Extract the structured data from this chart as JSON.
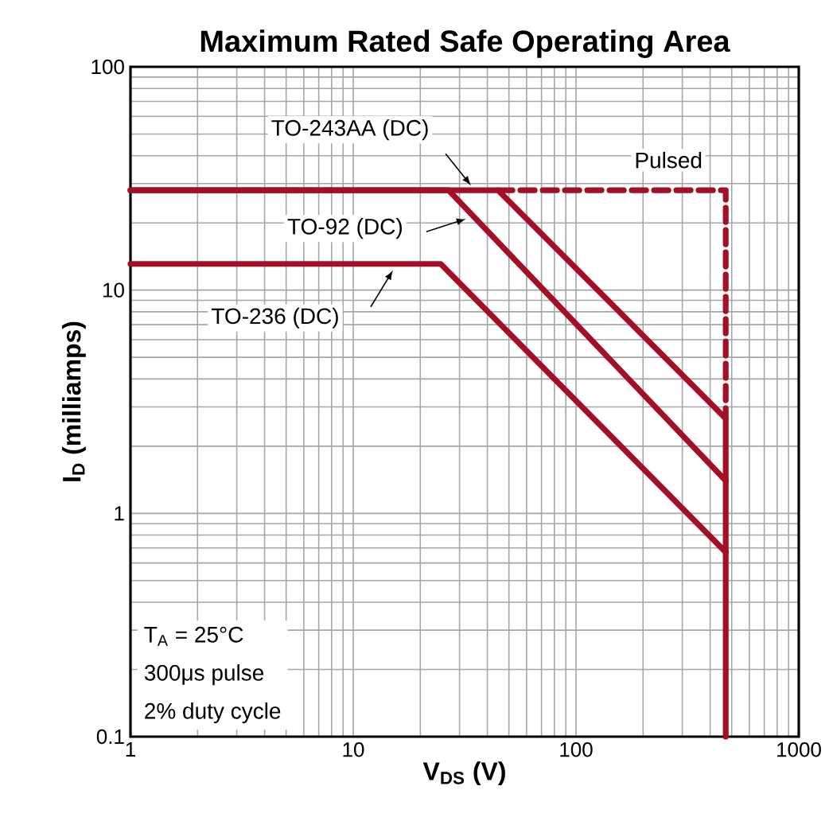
{
  "chart_data": {
    "type": "line",
    "title": "Maximum Rated Safe Operating Area",
    "xlabel": "**V$_{DS}$ (V)**",
    "ylabel": "**I$_{D}$ (milliamps)**",
    "log": "xy",
    "grid": true,
    "marker": "none",
    "xlim": [
      1,
      1000
    ],
    "ylim": [
      0.1,
      100
    ],
    "xticks": [
      1,
      10,
      100,
      1000
    ],
    "yticks": [
      0.1,
      1,
      10,
      100
    ],
    "series": [
      {
        "name": "TO-243AA (DC)",
        "color": "#a50f26",
        "line_style": "solid",
        "x": [
          1,
          44.7,
          470,
          470
        ],
        "values": [
          28,
          28,
          2.66,
          0.1
        ]
      },
      {
        "name": "TO-92 (DC)",
        "color": "#a50f26",
        "line_style": "solid",
        "x": [
          1,
          26.8,
          470
        ],
        "values": [
          28,
          28,
          1.4
        ]
      },
      {
        "name": "TO-236 (DC)",
        "color": "#a50f26",
        "line_style": "solid",
        "x": [
          1,
          24.7,
          470
        ],
        "values": [
          13.1,
          13.1,
          0.67
        ]
      },
      {
        "name": "Pulsed",
        "color": "#a50f26",
        "line_style": "dashed",
        "x": [
          44.7,
          470,
          470
        ],
        "values": [
          28,
          28,
          2.66
        ]
      }
    ],
    "annotations": [
      "T$_{A}$ = 25°C",
      "300μs pulse",
      "2% duty cycle"
    ]
  }
}
